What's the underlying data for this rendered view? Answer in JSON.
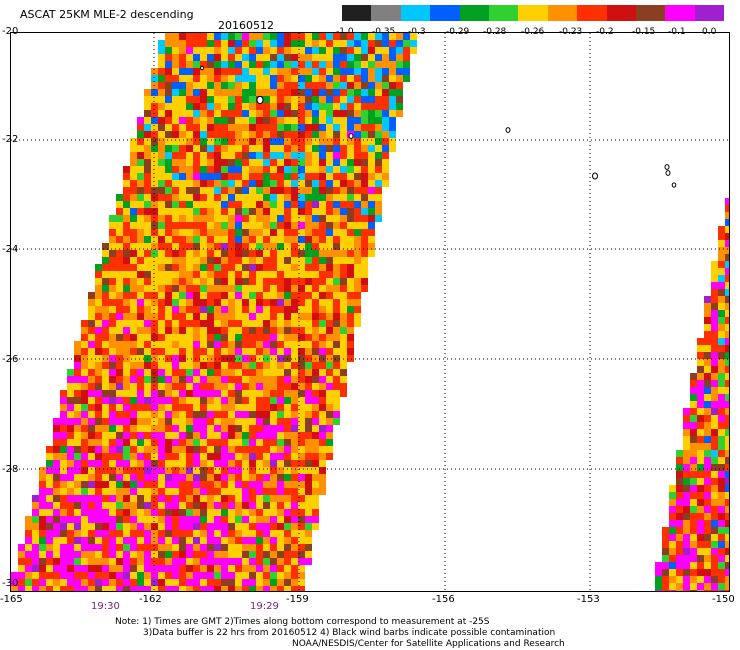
{
  "header": {
    "title": "ASCAT 25KM MLE-2 descending",
    "date": "20160512"
  },
  "legend": {
    "labels": [
      "-1.0",
      "-0.35",
      "-0.3",
      "-0.29",
      "-0.28",
      "-0.26",
      "-0.23",
      "-0.2",
      "-0.15",
      "-0.1",
      "0.0"
    ],
    "colors": [
      "#202020",
      "#808080",
      "#00c8ff",
      "#0060ff",
      "#00a020",
      "#30d030",
      "#ffd000",
      "#ff9000",
      "#ff3000",
      "#d01010",
      "#8a4020",
      "#ff00ff",
      "#a020d0"
    ]
  },
  "axes": {
    "latitudes": [
      "-20",
      "-22",
      "-24",
      "-26",
      "-28",
      "-30"
    ],
    "longitudes": [
      "-165",
      "-162",
      "-159",
      "-156",
      "-153",
      "-150"
    ]
  },
  "times": [
    "19:30",
    "19:29"
  ],
  "notes": [
    "Note: 1) Times are GMT 2)Times along bottom correspond to measurement at -25S",
    "3)Data buffer is 22 hrs from 20160512 4) Black wind barbs indicate possible contamination",
    "NOAA/NESDIS/Center for Satellite Applications and Research"
  ]
}
